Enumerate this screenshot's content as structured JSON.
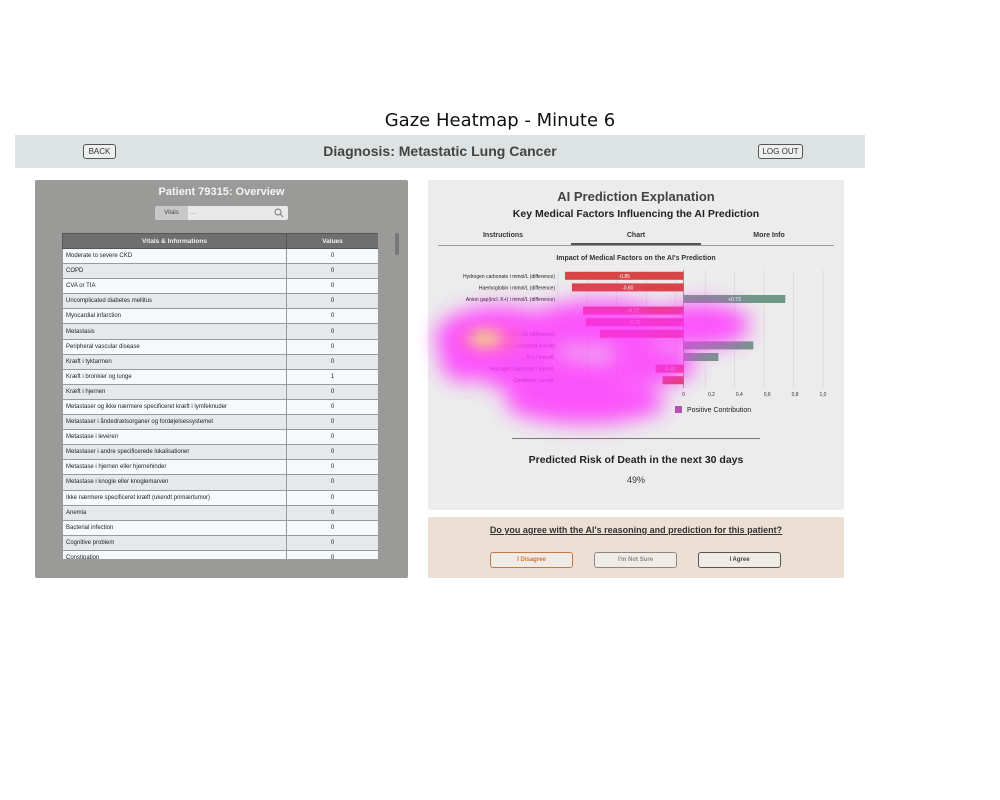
{
  "figure_title": "Gaze Heatmap - Minute 6",
  "header": {
    "back_label": "BACK",
    "title": "Diagnosis: Metastatic Lung Cancer",
    "logout_label": "LOG OUT"
  },
  "patient_panel": {
    "title": "Patient 79315: Overview",
    "search_tag": "Vitals",
    "search_placeholder": "...",
    "columns": [
      "Vitals & Informations",
      "Values"
    ],
    "rows": [
      [
        "Moderate to severe CKD",
        "0"
      ],
      [
        "COPD",
        "0"
      ],
      [
        "CVA or TIA",
        "0"
      ],
      [
        "Uncomplicated diabetes mellitus",
        "0"
      ],
      [
        "Myocardial infarction",
        "0"
      ],
      [
        "Metastasis",
        "0"
      ],
      [
        "Peripheral vascular disease",
        "0"
      ],
      [
        "Kræft i tyktarmen",
        "0"
      ],
      [
        "Kræft i bronkier og lunge",
        "1"
      ],
      [
        "Kræft i hjernen",
        "0"
      ],
      [
        "Metastaser og ikke nærmere specificeret kræft i lymfeknuder",
        "0"
      ],
      [
        "Metastaser i åndedrætsorganer og fordøjelsessystemet",
        "0"
      ],
      [
        "Metastase i leveren",
        "0"
      ],
      [
        "Metastaser i andre specificerede lokalisationer",
        "0"
      ],
      [
        "Metastase i hjernen eller hjernehinder",
        "0"
      ],
      [
        "Metastase i knogle eller knoglemarven",
        "0"
      ],
      [
        "Ikke nærmere specificeret kræft (ukendt primærtumor)",
        "0"
      ],
      [
        "Anemia",
        "0"
      ],
      [
        "Bacterial infection",
        "0"
      ],
      [
        "Cognitive problem",
        "0"
      ],
      [
        "Constipation",
        "0"
      ]
    ]
  },
  "explanation_panel": {
    "title": "AI Prediction Explanation",
    "subtitle": "Key Medical Factors Influencing the AI Prediction",
    "tabs": [
      "Instructions",
      "Chart",
      "More Info"
    ],
    "active_tab": "Chart",
    "risk_title": "Predicted Risk of Death in the next 30 days",
    "risk_value": "49%"
  },
  "chart_data": {
    "type": "bar",
    "orientation": "horizontal",
    "title": "Impact of Medical Factors on the AI's Prediction",
    "categories": [
      "Hydrogen carbonate i mmol/L (difference)",
      "Haemoglobin i mmol/L (difference)",
      "Anion gap(incl. K+) i mmol/L (difference)",
      "",
      "",
      "Alanine transaminase i U/L (difference)",
      "... of procedures (cumulated overall)",
      "... K+) i mmol/L",
      "Hydrogen carbonate i mmol/L",
      "Creatinine i µmol/L"
    ],
    "values": [
      -0.85,
      -0.8,
      0.73,
      -0.72,
      -0.7,
      -0.6,
      0.5,
      0.25,
      -0.2,
      -0.15
    ],
    "value_labels": [
      "-0.85",
      "-0.80",
      "+0.73",
      "-0.72",
      "-0.70",
      "",
      "",
      "",
      "-0.20",
      ""
    ],
    "xlim": [
      -0.9,
      1.0
    ],
    "x_ticks": [
      "0",
      "0,2",
      "0,4",
      "0,6",
      "0,8",
      "1,0"
    ],
    "legend": [
      "Positive Contribution"
    ],
    "colors": {
      "negative": "#d94545",
      "positive": "#6f9a86",
      "legend_swatch": "#b056b0"
    },
    "grid": true
  },
  "feedback_panel": {
    "question": "Do you agree with the AI's reasoning and prediction for this patient?",
    "disagree_label": "I Disagree",
    "not_sure_label": "I'm Not Sure",
    "agree_label": "I Agree"
  },
  "heatmap_colors": {
    "low": "#ff33ff",
    "mid": "#ff66cc",
    "high": "#f3e060"
  }
}
